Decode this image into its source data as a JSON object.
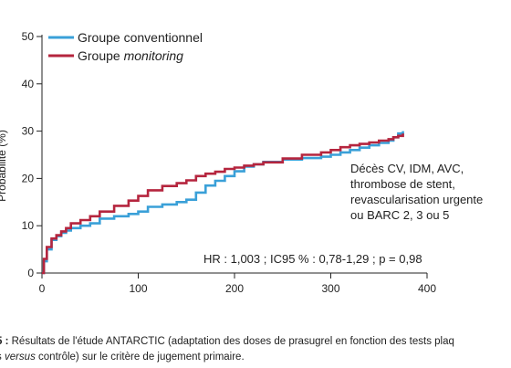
{
  "chart_data": {
    "type": "line",
    "ylabel": "Probabilité (%)",
    "xlim": [
      0,
      400
    ],
    "ylim": [
      0,
      50
    ],
    "x_ticks": [
      0,
      100,
      200,
      300,
      400
    ],
    "y_ticks": [
      0,
      10,
      20,
      30,
      40,
      50
    ],
    "legend_position": "top-left",
    "series": [
      {
        "name": "Groupe conventionnel",
        "name_parts": [
          {
            "text": "Groupe conventionnel",
            "italic": false
          }
        ],
        "color": "#3aa0d8",
        "x": [
          0,
          2,
          5,
          10,
          15,
          20,
          25,
          30,
          40,
          50,
          60,
          75,
          90,
          100,
          110,
          125,
          140,
          150,
          160,
          170,
          180,
          190,
          200,
          210,
          220,
          230,
          250,
          270,
          290,
          300,
          310,
          320,
          330,
          340,
          350,
          360,
          365,
          370,
          375
        ],
        "y": [
          0,
          2.5,
          5,
          7,
          7.8,
          8.5,
          9,
          9.5,
          10,
          10.5,
          11.5,
          12,
          12.5,
          13,
          14,
          14.5,
          15,
          15.5,
          17,
          18.5,
          19.5,
          20.5,
          21.5,
          22.5,
          23,
          23.5,
          24,
          24.3,
          24.6,
          25,
          25.5,
          26,
          26.5,
          27,
          27.5,
          28,
          28.7,
          29.5,
          30
        ]
      },
      {
        "name": "Groupe monitoring",
        "name_parts": [
          {
            "text": "Groupe ",
            "italic": false
          },
          {
            "text": "monitoring",
            "italic": true
          }
        ],
        "color": "#b5253e",
        "x": [
          0,
          2,
          5,
          10,
          15,
          20,
          25,
          30,
          40,
          50,
          60,
          75,
          90,
          100,
          110,
          125,
          140,
          150,
          160,
          170,
          180,
          190,
          200,
          210,
          220,
          230,
          250,
          270,
          290,
          300,
          310,
          320,
          330,
          340,
          350,
          360,
          365,
          370,
          375
        ],
        "y": [
          0,
          3,
          5.5,
          7.3,
          8,
          8.8,
          9.5,
          10.5,
          11.2,
          12,
          13,
          14.2,
          15.3,
          16.3,
          17.5,
          18.4,
          19,
          19.6,
          20.5,
          21,
          21.4,
          22,
          22.3,
          22.7,
          23,
          23.4,
          24.2,
          25,
          25.5,
          26,
          26.6,
          27,
          27.3,
          27.6,
          28,
          28.3,
          28.7,
          29,
          29.5
        ]
      }
    ],
    "annotations": {
      "endpoint_lines": [
        "Décès CV, IDM, AVC,",
        "thrombose de stent,",
        "revascularisation urgente",
        "ou BARC 2, 3 ou 5"
      ],
      "stats": "HR : 1,003 ; IC95 % : 0,78-1,29 ; p = 0,98"
    }
  },
  "caption": {
    "line1_prefix": "5 :",
    "line1_text": "Résultats de l'étude ANTARCTIC (adaptation des doses de prasugrel en fonction des tests plaq",
    "line2_a": "s ",
    "line2_em": "versus",
    "line2_b": " contrôle) sur le critère de jugement primaire."
  }
}
